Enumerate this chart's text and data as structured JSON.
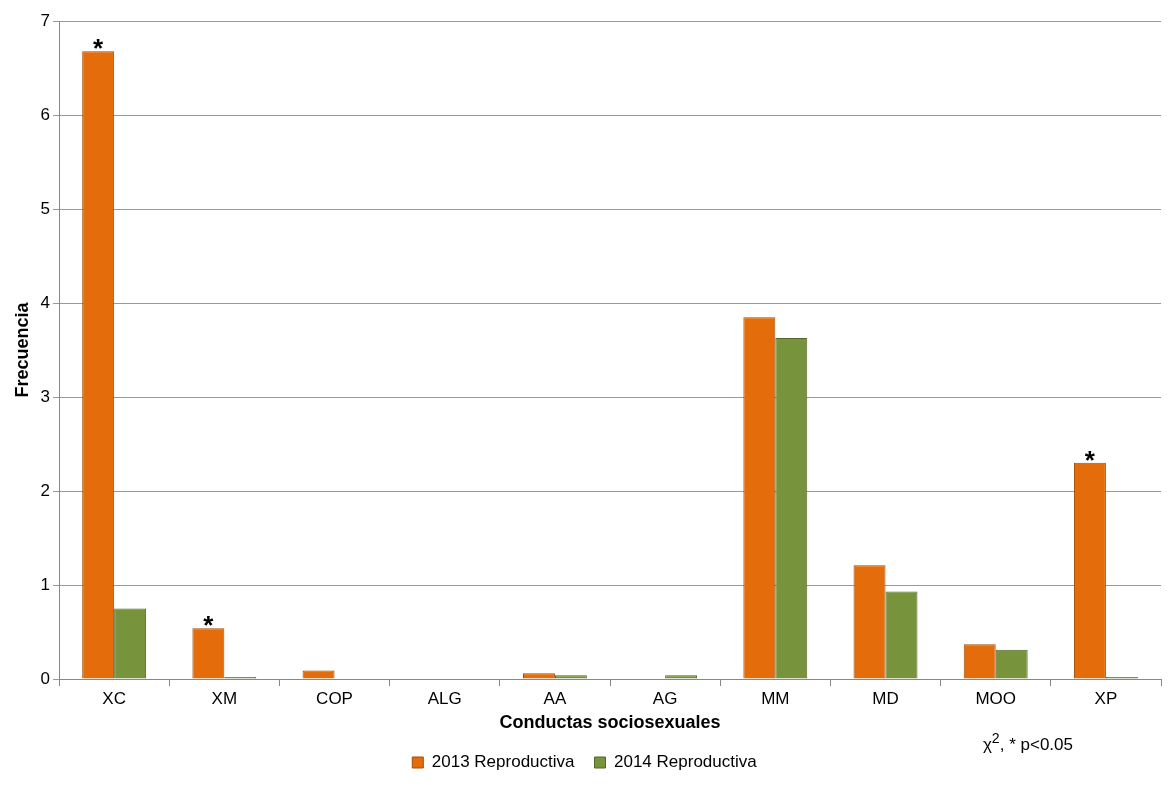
{
  "chart_data": {
    "type": "bar",
    "xlabel": "Conductas sociosexuales",
    "ylabel": "Frecuencia",
    "categories": [
      "XC",
      "XM",
      "COP",
      "ALG",
      "AA",
      "AG",
      "MM",
      "MD",
      "MOO",
      "XP"
    ],
    "series": [
      {
        "name": "2013 Reproductiva",
        "color": "#e46c0a",
        "values": [
          6.68,
          0.54,
          0.09,
          0,
          0.06,
          0,
          3.85,
          1.21,
          0.37,
          2.3
        ]
      },
      {
        "name": "2014 Reproductiva",
        "color": "#77933c",
        "values": [
          0.75,
          0.02,
          0,
          0,
          0.04,
          0.04,
          3.63,
          0.93,
          0.31,
          0.02
        ]
      }
    ],
    "ylim": [
      0,
      7
    ],
    "yticks": [
      0,
      1,
      2,
      3,
      4,
      5,
      6,
      7
    ],
    "grid": "y",
    "legend": "bottom",
    "annotations": [
      {
        "text": "*",
        "x": "XC",
        "y": 6.68
      },
      {
        "text": "*",
        "x": "XM",
        "y": 0.54
      },
      {
        "text": "*",
        "x": "XP",
        "y": 2.3
      },
      "χ$^{2}$, * p<0.05"
    ]
  }
}
